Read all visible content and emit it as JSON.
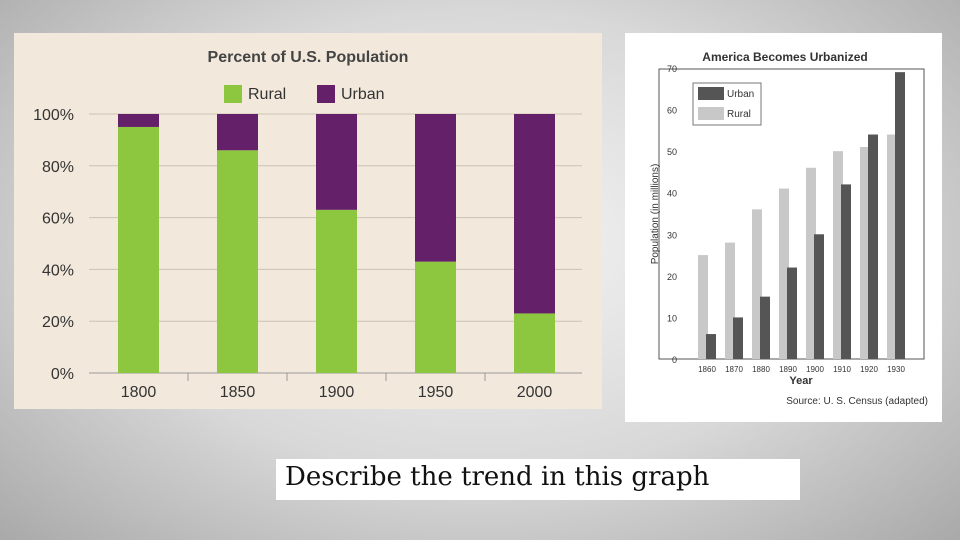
{
  "caption": "Describe the trend in this graph",
  "colors": {
    "rural_left": "#8dc63f",
    "urban_left": "#65206a",
    "urban_right": "#555555",
    "rural_right": "#c8c8c8"
  },
  "chart_data": [
    {
      "type": "bar",
      "stacked": true,
      "title": "Percent of U.S. Population",
      "categories": [
        "1800",
        "1850",
        "1900",
        "1950",
        "2000"
      ],
      "series": [
        {
          "name": "Rural",
          "values": [
            95,
            86,
            63,
            43,
            23
          ]
        },
        {
          "name": "Urban",
          "values": [
            5,
            14,
            37,
            57,
            77
          ]
        }
      ],
      "ylim": [
        0,
        100
      ],
      "yticks": [
        "0%",
        "20%",
        "40%",
        "60%",
        "80%",
        "100%"
      ],
      "grid": true,
      "legend": "top"
    },
    {
      "type": "bar",
      "title": "America Becomes Urbanized",
      "categories": [
        "1860",
        "1870",
        "1880",
        "1890",
        "1900",
        "1910",
        "1920",
        "1930"
      ],
      "series": [
        {
          "name": "Urban",
          "values": [
            6,
            10,
            15,
            22,
            30,
            42,
            54,
            69
          ]
        },
        {
          "name": "Rural",
          "values": [
            25,
            28,
            36,
            41,
            46,
            50,
            51,
            54
          ]
        }
      ],
      "ylabel": "Population (in millions)",
      "xlabel": "Year",
      "ylim": [
        0,
        70
      ],
      "yticks": [
        "0",
        "10",
        "20",
        "30",
        "40",
        "50",
        "60",
        "70"
      ],
      "legend": "top-left",
      "source": "Source: U. S. Census (adapted)"
    }
  ]
}
